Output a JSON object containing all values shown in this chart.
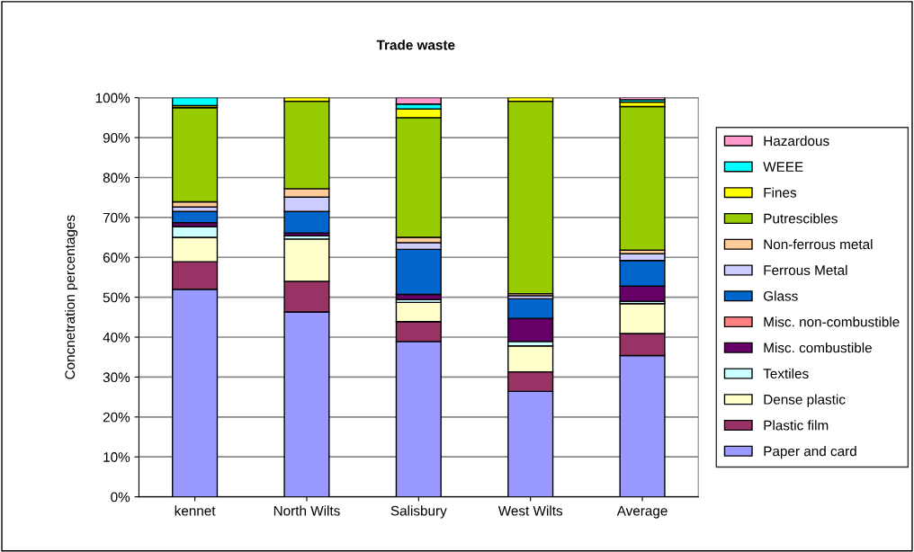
{
  "chart_data": {
    "type": "bar",
    "stacked": true,
    "title": "Trade waste",
    "ylabel": "Concnetration percentages",
    "categories": [
      "kennet",
      "North Wilts",
      "Salisbury",
      "West Wilts",
      "Average"
    ],
    "ylim": [
      0,
      100
    ],
    "yticks": [
      {
        "value": 0,
        "label": "0%"
      },
      {
        "value": 10,
        "label": "10%"
      },
      {
        "value": 20,
        "label": "20%"
      },
      {
        "value": 30,
        "label": "30%"
      },
      {
        "value": 40,
        "label": "40%"
      },
      {
        "value": 50,
        "label": "50%"
      },
      {
        "value": 60,
        "label": "60%"
      },
      {
        "value": 70,
        "label": "70%"
      },
      {
        "value": 80,
        "label": "80%"
      },
      {
        "value": 90,
        "label": "90%"
      },
      {
        "value": 100,
        "label": "100%"
      }
    ],
    "grid": "y",
    "legend": "right",
    "series": [
      {
        "name": "Paper and card",
        "color": "#9999ff",
        "values": [
          52.0,
          46.3,
          38.9,
          26.4,
          35.4
        ]
      },
      {
        "name": "Plastic film",
        "color": "#993366",
        "values": [
          6.9,
          7.7,
          5.0,
          4.9,
          5.5
        ]
      },
      {
        "name": "Dense plastic",
        "color": "#ffffcc",
        "values": [
          6.1,
          10.6,
          4.8,
          6.5,
          7.5
        ]
      },
      {
        "name": "Textiles",
        "color": "#ccffff",
        "values": [
          2.7,
          0.8,
          0.7,
          1.1,
          0.6
        ]
      },
      {
        "name": "Misc. combustible",
        "color": "#660066",
        "values": [
          1.0,
          0.7,
          1.3,
          5.8,
          3.8
        ]
      },
      {
        "name": "Misc. non-combustible",
        "color": "#ff8080",
        "values": [
          0,
          0,
          0,
          0,
          0
        ]
      },
      {
        "name": "Glass",
        "color": "#0066cc",
        "values": [
          2.8,
          5.4,
          11.3,
          4.9,
          6.4
        ]
      },
      {
        "name": "Ferrous Metal",
        "color": "#ccccff",
        "values": [
          1.1,
          3.6,
          1.7,
          0.8,
          1.7
        ]
      },
      {
        "name": "Non-ferrous metal",
        "color": "#ffcc99",
        "values": [
          1.3,
          2.1,
          1.3,
          0.5,
          0.9
        ]
      },
      {
        "name": "Putrescibles",
        "color": "#99cc00",
        "values": [
          23.6,
          21.9,
          30.0,
          48.2,
          36.0
        ]
      },
      {
        "name": "Fines",
        "color": "#ffff00",
        "values": [
          0.5,
          0.9,
          2.2,
          0.9,
          1.1
        ]
      },
      {
        "name": "WEEE",
        "color": "#00ffff",
        "values": [
          2.0,
          0,
          1.2,
          0,
          0.6
        ]
      },
      {
        "name": "Hazardous",
        "color": "#ff99cc",
        "values": [
          0,
          0,
          1.6,
          0,
          0.6
        ]
      }
    ]
  }
}
